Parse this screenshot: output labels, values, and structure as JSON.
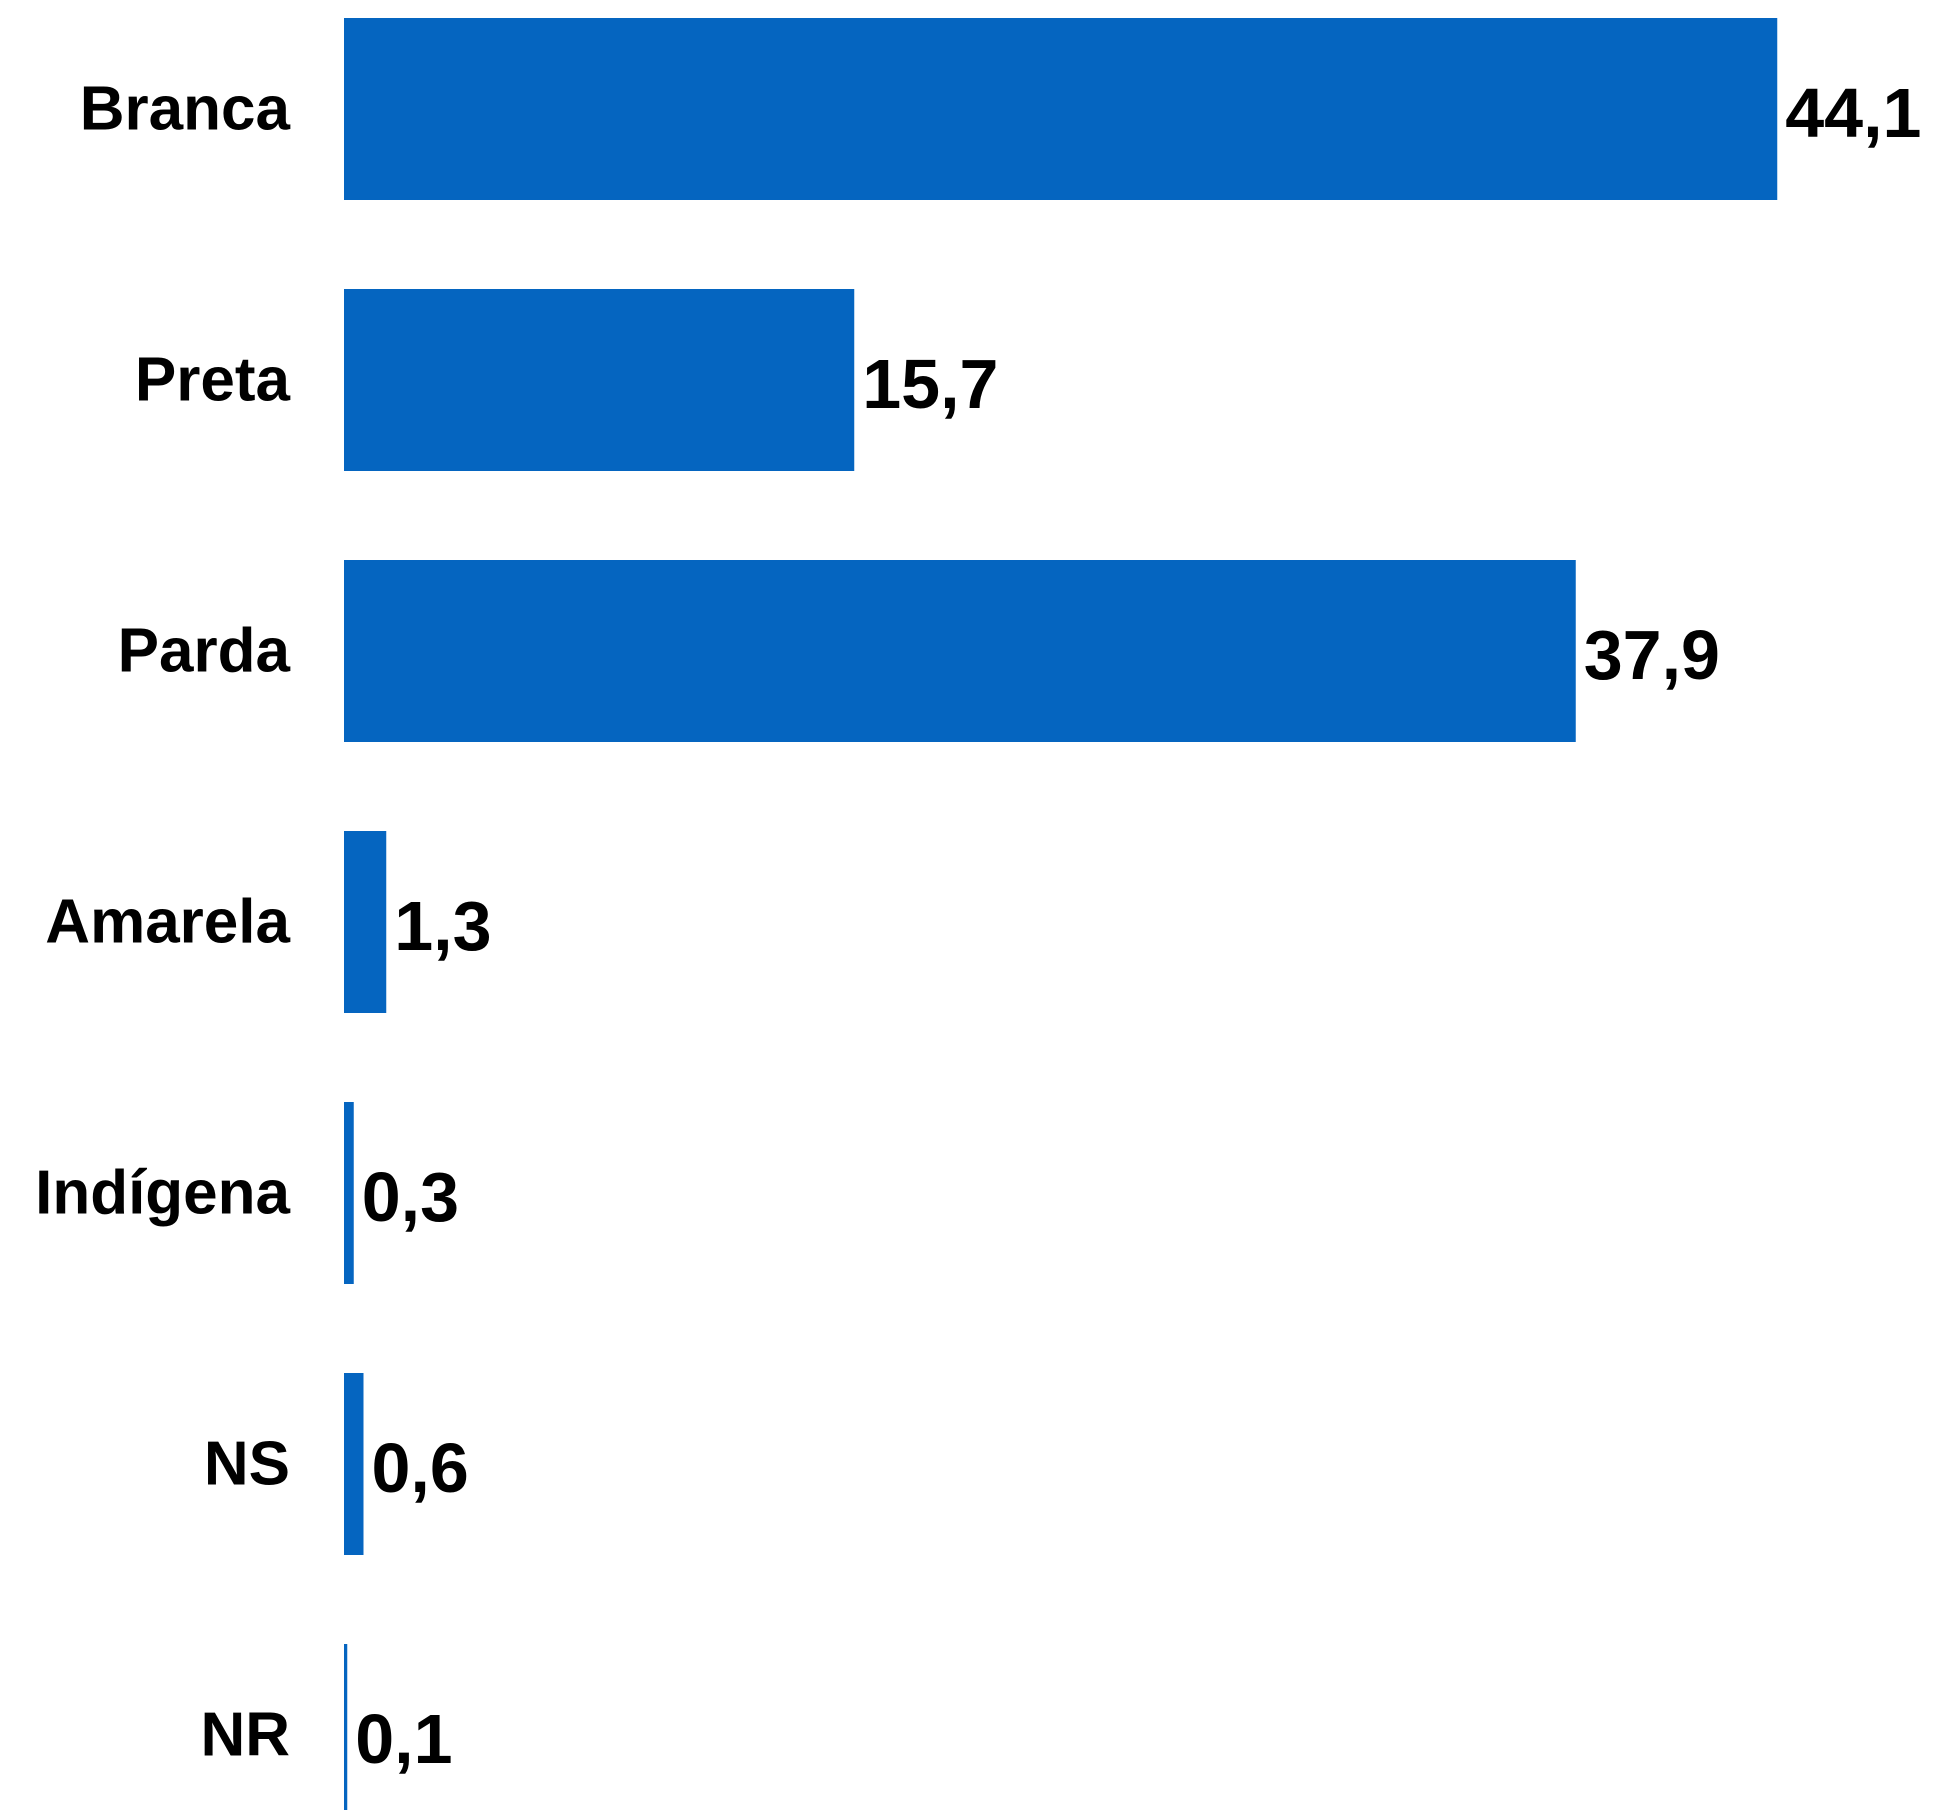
{
  "chart_data": {
    "type": "bar",
    "orientation": "horizontal",
    "categories": [
      "Branca",
      "Preta",
      "Parda",
      "Amarela",
      "Indígena",
      "NS",
      "NR"
    ],
    "values": [
      44.1,
      15.7,
      37.9,
      1.3,
      0.3,
      0.6,
      0.1
    ],
    "value_labels": [
      "44,1",
      "15,7",
      "37,9",
      "1,3",
      "0,3",
      "0,6",
      "0,1"
    ],
    "title": "",
    "xlabel": "",
    "ylabel": "",
    "grid": false,
    "legend": "none",
    "bar_color": "#0565c0"
  }
}
